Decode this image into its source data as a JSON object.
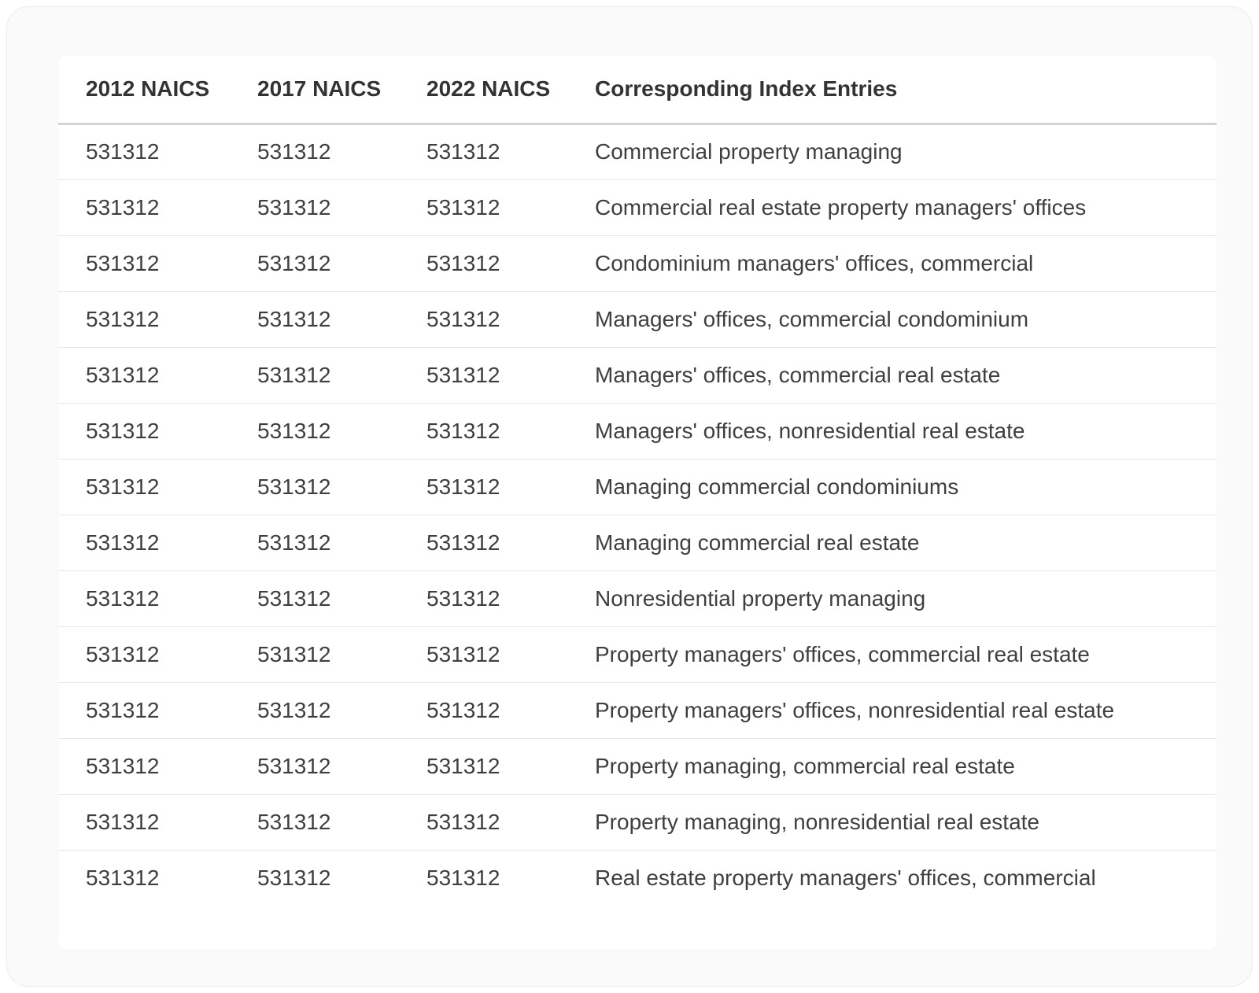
{
  "colors": {
    "page_bg": "#ffffff",
    "card_bg": "#fafafa",
    "card_border": "#ececec",
    "table_bg": "#ffffff",
    "header_text": "#333333",
    "cell_text": "#3f3f3f",
    "header_border": "#d3d3d3",
    "row_border": "#e7e7e7"
  },
  "table": {
    "columns": [
      "2012 NAICS",
      "2017 NAICS",
      "2022 NAICS",
      "Corresponding Index Entries"
    ],
    "rows": [
      {
        "naics_2012": "531312",
        "naics_2017": "531312",
        "naics_2022": "531312",
        "index_entry": "Commercial property managing"
      },
      {
        "naics_2012": "531312",
        "naics_2017": "531312",
        "naics_2022": "531312",
        "index_entry": "Commercial real estate property managers' offices"
      },
      {
        "naics_2012": "531312",
        "naics_2017": "531312",
        "naics_2022": "531312",
        "index_entry": "Condominium managers' offices, commercial"
      },
      {
        "naics_2012": "531312",
        "naics_2017": "531312",
        "naics_2022": "531312",
        "index_entry": "Managers' offices, commercial condominium"
      },
      {
        "naics_2012": "531312",
        "naics_2017": "531312",
        "naics_2022": "531312",
        "index_entry": "Managers' offices, commercial real estate"
      },
      {
        "naics_2012": "531312",
        "naics_2017": "531312",
        "naics_2022": "531312",
        "index_entry": "Managers' offices, nonresidential real estate"
      },
      {
        "naics_2012": "531312",
        "naics_2017": "531312",
        "naics_2022": "531312",
        "index_entry": "Managing commercial condominiums"
      },
      {
        "naics_2012": "531312",
        "naics_2017": "531312",
        "naics_2022": "531312",
        "index_entry": "Managing commercial real estate"
      },
      {
        "naics_2012": "531312",
        "naics_2017": "531312",
        "naics_2022": "531312",
        "index_entry": "Nonresidential property managing"
      },
      {
        "naics_2012": "531312",
        "naics_2017": "531312",
        "naics_2022": "531312",
        "index_entry": "Property managers' offices, commercial real estate"
      },
      {
        "naics_2012": "531312",
        "naics_2017": "531312",
        "naics_2022": "531312",
        "index_entry": "Property managers' offices, nonresidential real estate"
      },
      {
        "naics_2012": "531312",
        "naics_2017": "531312",
        "naics_2022": "531312",
        "index_entry": "Property managing, commercial real estate"
      },
      {
        "naics_2012": "531312",
        "naics_2017": "531312",
        "naics_2022": "531312",
        "index_entry": "Property managing, nonresidential real estate"
      },
      {
        "naics_2012": "531312",
        "naics_2017": "531312",
        "naics_2022": "531312",
        "index_entry": "Real estate property managers' offices, commercial"
      }
    ]
  }
}
